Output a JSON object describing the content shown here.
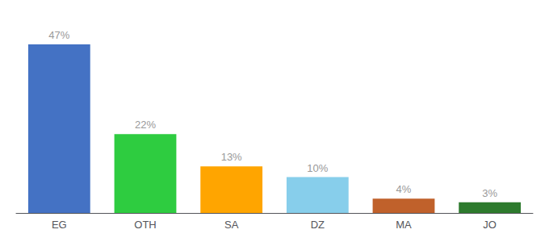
{
  "chart_data": {
    "type": "bar",
    "categories": [
      "EG",
      "OTH",
      "SA",
      "DZ",
      "MA",
      "JO"
    ],
    "values": [
      47,
      22,
      13,
      10,
      4,
      3
    ],
    "value_labels": [
      "47%",
      "22%",
      "13%",
      "10%",
      "4%",
      "3%"
    ],
    "colors": [
      "#4472C4",
      "#2ECC40",
      "#FFA500",
      "#87CEEB",
      "#C0612B",
      "#2D7A2D"
    ],
    "ylim": [
      0,
      54
    ],
    "grid": false,
    "data_labels": true,
    "tick_labels": "x"
  }
}
